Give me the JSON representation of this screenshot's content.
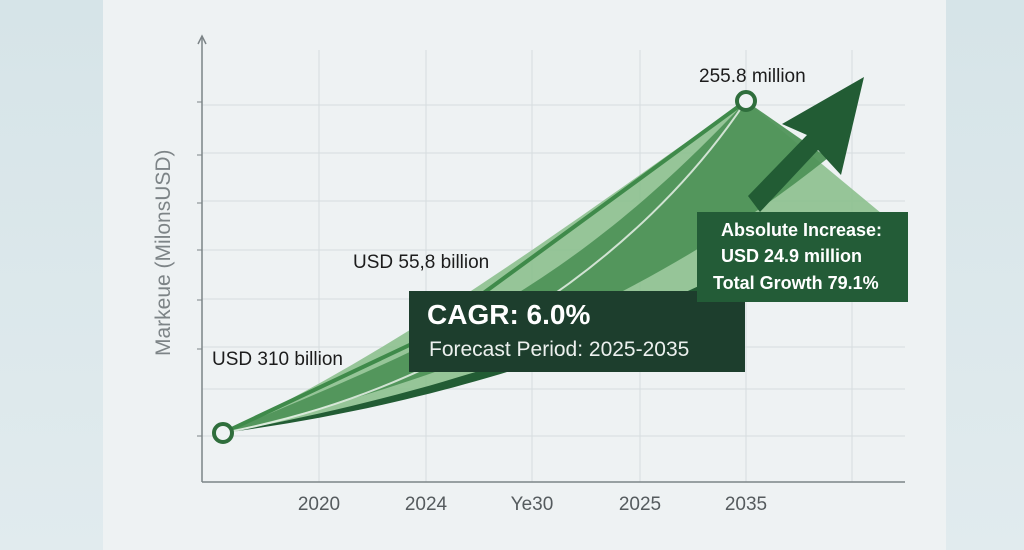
{
  "chart_data": {
    "type": "line",
    "title": "",
    "ylabel": "Markeue (MilonsUSD)",
    "xlabel": "",
    "categories": [
      "2020",
      "2024",
      "Ye30",
      "2025",
      "2035"
    ],
    "annotations": {
      "start_value": "USD 310 billion",
      "mid_value": "USD 55,8 billion",
      "end_value": "255.8 million"
    },
    "callouts": {
      "cagr": "CAGR: 6.0%",
      "forecast_period": "Forecast Period: 2025-2035",
      "absolute_increase_label": "Absolute Increase:",
      "absolute_increase_value": "USD 24.9 million",
      "total_growth": "Total Growth 79.1%"
    },
    "grid": true,
    "colors": {
      "line": "#3f8a4a",
      "area_light": "#8cc08e",
      "area_dark": "#4f9458",
      "arrow": "#225c34",
      "cagr_box": "#1d3e2d"
    }
  }
}
